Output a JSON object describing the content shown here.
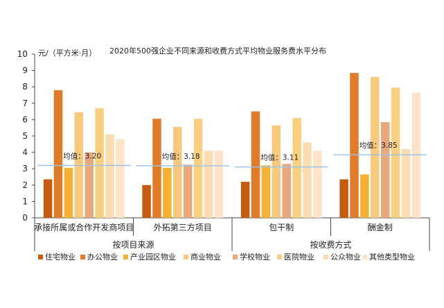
{
  "chart_data": {
    "type": "bar",
    "title": "2020年500强企业不同来源和收费方式平均物业服务费水平分布",
    "ylabel": "元/（平方米·月）",
    "ylim": [
      0,
      10
    ],
    "yticks": [
      0,
      1,
      2,
      3,
      4,
      5,
      6,
      7,
      8,
      9,
      10
    ],
    "grid": false,
    "legend_position": "bottom",
    "groups": [
      {
        "label": "按项目来源",
        "categories": [
          "承接所属或合作开发商项目",
          "外拓第三方项目"
        ]
      },
      {
        "label": "按收费方式",
        "categories": [
          "包干制",
          "酬金制"
        ]
      }
    ],
    "categories": [
      "承接所属或合作开发商项目",
      "外拓第三方项目",
      "包干制",
      "酬金制"
    ],
    "series": [
      {
        "name": "住宅物业",
        "color": "#c55a11",
        "values": [
          2.35,
          2.0,
          2.2,
          2.35
        ]
      },
      {
        "name": "办公物业",
        "color": "#e07b2a",
        "values": [
          7.8,
          6.05,
          6.5,
          8.85
        ]
      },
      {
        "name": "产业园区物业",
        "color": "#f4b133",
        "values": [
          3.05,
          3.05,
          3.2,
          2.65
        ]
      },
      {
        "name": "商业物业",
        "color": "#f7c97f",
        "values": [
          6.45,
          5.55,
          5.65,
          8.6
        ]
      },
      {
        "name": "学校物业",
        "color": "#e8a87c",
        "values": [
          4.0,
          3.25,
          3.3,
          5.85
        ]
      },
      {
        "name": "医院物业",
        "color": "#f9cf80",
        "values": [
          6.7,
          6.05,
          6.1,
          7.95
        ]
      },
      {
        "name": "公众物业",
        "color": "#fbdcb0",
        "values": [
          5.1,
          4.1,
          4.6,
          4.2
        ]
      },
      {
        "name": "其他类型物业",
        "color": "#fde3c8",
        "values": [
          4.8,
          4.1,
          4.1,
          7.65
        ]
      }
    ],
    "averages": [
      {
        "label": "均值：3.20",
        "value": 3.2
      },
      {
        "label": "均值：3.18",
        "value": 3.18
      },
      {
        "label": "均值：3.11",
        "value": 3.11
      },
      {
        "label": "均值：3.85",
        "value": 3.85
      }
    ],
    "average_line_color": "#9dc3e6"
  }
}
